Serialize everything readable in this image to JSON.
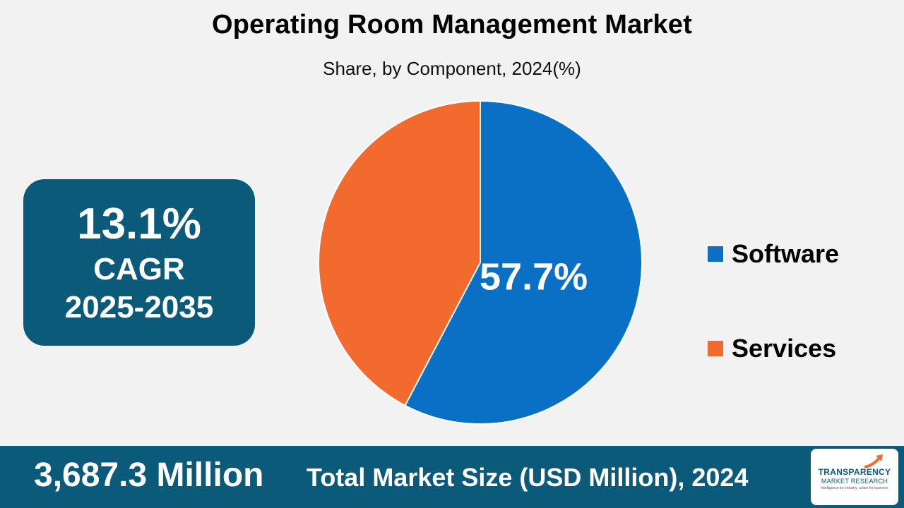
{
  "header": {
    "title": "Operating Room Management Market",
    "subtitle": "Share, by Component, 2024(%)"
  },
  "cagr": {
    "value": "13.1%",
    "label": "CAGR",
    "period": "2025-2035"
  },
  "chart_data": {
    "type": "pie",
    "title": "Operating Room Management Market",
    "subtitle": "Share, by Component, 2024(%)",
    "categories": [
      "Software",
      "Services"
    ],
    "values": [
      57.7,
      42.3
    ],
    "data_labels": [
      "57.7%",
      ""
    ],
    "colors": [
      "#0a70c6",
      "#f26a2e"
    ],
    "legend_position": "right"
  },
  "footer": {
    "market_size": "3,687.3 Million",
    "market_label": "Total Market Size (USD Million), 2024"
  },
  "logo": {
    "name": "TRANSPARENCY",
    "sub": "MARKET RESEARCH",
    "tagline": "Intelligence for industry, action for business"
  }
}
